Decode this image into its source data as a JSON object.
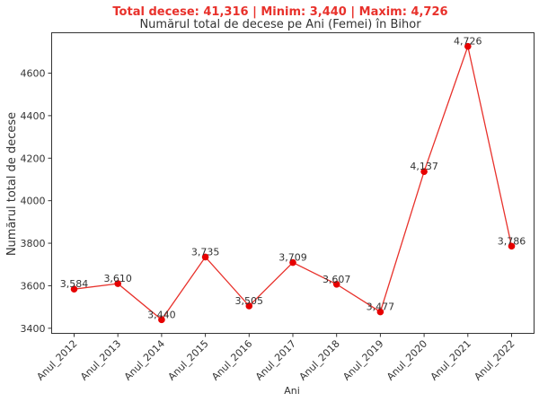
{
  "chart_data": {
    "type": "line",
    "suptitle": "Total decese: 41,316 | Minim: 3,440 | Maxim: 4,726",
    "title": "Numărul total de decese pe Ani (Femei) în Bihor",
    "xlabel": "Ani",
    "ylabel": "Numărul total de decese",
    "categories": [
      "Anul_2012",
      "Anul_2013",
      "Anul_2014",
      "Anul_2015",
      "Anul_2016",
      "Anul_2017",
      "Anul_2018",
      "Anul_2019",
      "Anul_2020",
      "Anul_2021",
      "Anul_2022"
    ],
    "values": [
      3584,
      3610,
      3440,
      3735,
      3505,
      3709,
      3607,
      3477,
      4137,
      4726,
      3786
    ],
    "data_labels": [
      "3,584",
      "3,610",
      "3,440",
      "3,735",
      "3,505",
      "3,709",
      "3,607",
      "3,477",
      "4,137",
      "4,726",
      "3,786"
    ],
    "yticks": [
      3400,
      3600,
      3800,
      4000,
      4200,
      4400,
      4600
    ],
    "ylim": [
      3376,
      4790
    ],
    "grid": false,
    "line_color": "#e8312b",
    "marker_color": "#e60000"
  }
}
